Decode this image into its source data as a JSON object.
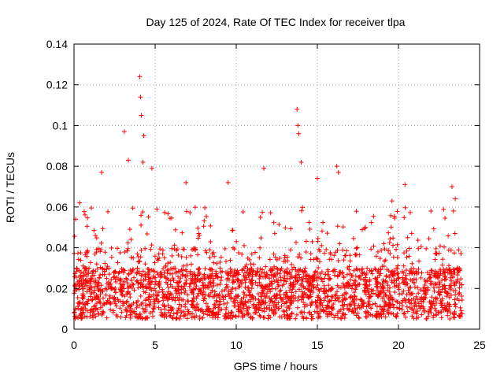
{
  "chart_data": {
    "type": "scatter",
    "title": "Day 125 of 2024, Rate Of TEC Index for receiver tlpa",
    "xlabel": "GPS time / hours",
    "ylabel": "ROTI / TECUs",
    "xlim": [
      0,
      25
    ],
    "ylim": [
      0,
      0.14
    ],
    "xticks": [
      0,
      5,
      10,
      15,
      20,
      25
    ],
    "xtick_labels": [
      "0",
      "5",
      "10",
      "15",
      "20",
      "25"
    ],
    "yticks": [
      0,
      0.02,
      0.04,
      0.06,
      0.08,
      0.1,
      0.12,
      0.14
    ],
    "ytick_labels": [
      "0",
      "0.02",
      "0.04",
      "0.06",
      "0.08",
      "0.1",
      "0.12",
      "0.14"
    ],
    "grid": true,
    "marker": "+",
    "color": "#ff0000",
    "series": [
      {
        "name": "ROTI",
        "points_generated": 2400,
        "x_range": [
          0,
          24
        ],
        "baseline_range": [
          0.005,
          0.03
        ],
        "spikes": [
          {
            "x": 3.1,
            "y": 0.097
          },
          {
            "x": 3.35,
            "y": 0.083
          },
          {
            "x": 4.05,
            "y": 0.124
          },
          {
            "x": 4.1,
            "y": 0.114
          },
          {
            "x": 4.15,
            "y": 0.105
          },
          {
            "x": 4.3,
            "y": 0.095
          },
          {
            "x": 4.25,
            "y": 0.082
          },
          {
            "x": 4.8,
            "y": 0.079
          },
          {
            "x": 1.7,
            "y": 0.077
          },
          {
            "x": 6.9,
            "y": 0.072
          },
          {
            "x": 9.5,
            "y": 0.072
          },
          {
            "x": 11.7,
            "y": 0.079
          },
          {
            "x": 13.75,
            "y": 0.108
          },
          {
            "x": 13.8,
            "y": 0.1
          },
          {
            "x": 13.85,
            "y": 0.096
          },
          {
            "x": 14.0,
            "y": 0.082
          },
          {
            "x": 15.0,
            "y": 0.074
          },
          {
            "x": 16.2,
            "y": 0.08
          },
          {
            "x": 16.3,
            "y": 0.077
          },
          {
            "x": 20.4,
            "y": 0.071
          },
          {
            "x": 23.3,
            "y": 0.07
          },
          {
            "x": 23.5,
            "y": 0.064
          },
          {
            "x": 22.0,
            "y": 0.058
          },
          {
            "x": 19.6,
            "y": 0.063
          },
          {
            "x": 0.1,
            "y": 0.054
          },
          {
            "x": 0.35,
            "y": 0.062
          }
        ]
      }
    ]
  }
}
